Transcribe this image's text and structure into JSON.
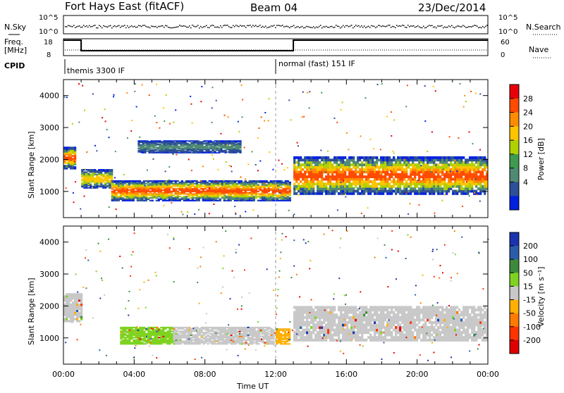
{
  "header": {
    "site": "Fort Hays East (fitACF)",
    "beam": "Beam 04",
    "date": "23/Dec/2014"
  },
  "strip_labels": {
    "nsky": "N.Sky",
    "nsearch": "N.Search",
    "freq_line1": "Freq.",
    "freq_line2": "[MHz]",
    "nave": "Nave",
    "cpid": "CPID",
    "nsky_top": "10^5",
    "nsky_bot": "10^0",
    "freq_top": "18",
    "freq_bot": "8",
    "nave_top": "60",
    "nave_bot": "0",
    "nsearch_top": "10^5",
    "nsearch_bot": "10^0"
  },
  "cpid_segments": [
    {
      "label": "themis 3300 IF",
      "start_hour": 0,
      "end_hour": 12
    },
    {
      "label": "normal (fast) 151 IF",
      "start_hour": 12,
      "end_hour": 24
    }
  ],
  "power_colorbar": {
    "title": "Power [dB]",
    "ticks": [
      "28",
      "24",
      "20",
      "16",
      "12",
      "8",
      "4"
    ],
    "colors": [
      "#e8000b",
      "#ff4a00",
      "#ff8c00",
      "#ffc400",
      "#b0d000",
      "#3e9a4e",
      "#4f8a74",
      "#2d4f96",
      "#0020e0"
    ]
  },
  "velocity_colorbar": {
    "title": "Velocity [m s⁻¹]",
    "ticks": [
      "200",
      "100",
      "50",
      "15",
      "-15",
      "-50",
      "-100",
      "-200"
    ],
    "colors": [
      "#1a33b0",
      "#2a5caa",
      "#3d8a3d",
      "#7ed321",
      "#c8c8c8",
      "#ffb000",
      "#ff7a00",
      "#ff3300",
      "#e00000"
    ]
  },
  "axes": {
    "ylabel": "Slant Range [km]",
    "xlabel": "Time UT",
    "yticks": [
      "4000",
      "3000",
      "2000",
      "1000"
    ],
    "xticks": [
      "00:00",
      "04:00",
      "08:00",
      "12:00",
      "16:00",
      "20:00",
      "00:00"
    ]
  },
  "chart_data": [
    {
      "type": "line",
      "title": "Freq.",
      "ylabel": "[MHz]",
      "ylim": [
        8,
        18
      ],
      "x_hours": [
        0,
        1,
        1,
        13,
        13,
        24
      ],
      "freq_mhz": [
        18,
        18,
        10.5,
        10.5,
        18,
        18
      ]
    },
    {
      "type": "heatmap",
      "title": "Power [dB]",
      "xlabel": "Time UT",
      "ylabel": "Slant Range [km]",
      "xlim_hours": [
        0,
        24
      ],
      "ylim_km": [
        180,
        4500
      ],
      "colorbar_range_db": [
        0,
        30
      ],
      "bands": [
        {
          "t0": 0.0,
          "t1": 0.6,
          "r0": 1700,
          "r1": 2400,
          "level": "high"
        },
        {
          "t0": 1.0,
          "t1": 2.7,
          "r0": 1100,
          "r1": 1700,
          "level": "mid"
        },
        {
          "t0": 2.7,
          "t1": 12.8,
          "r0": 700,
          "r1": 1350,
          "level": "high"
        },
        {
          "t0": 4.2,
          "t1": 10.0,
          "r0": 2200,
          "r1": 2600,
          "level": "low"
        },
        {
          "t0": 13.0,
          "t1": 24.0,
          "r0": 900,
          "r1": 2100,
          "level": "high"
        }
      ]
    },
    {
      "type": "heatmap",
      "title": "Velocity [m s⁻¹]",
      "xlabel": "Time UT",
      "ylabel": "Slant Range [km]",
      "xlim_hours": [
        0,
        24
      ],
      "ylim_km": [
        180,
        4500
      ],
      "colorbar_range_ms": [
        -200,
        200
      ],
      "bands": [
        {
          "t0": 0.0,
          "t1": 1.0,
          "r0": 1500,
          "r1": 2400,
          "velocity": "-15 to 15"
        },
        {
          "t0": 3.2,
          "t1": 6.2,
          "r0": 800,
          "r1": 1350,
          "velocity": "15 to 50"
        },
        {
          "t0": 6.2,
          "t1": 11.9,
          "r0": 800,
          "r1": 1350,
          "velocity": "-15 to 15"
        },
        {
          "t0": 12.0,
          "t1": 12.8,
          "r0": 800,
          "r1": 1300,
          "velocity": "-50 to -15"
        },
        {
          "t0": 13.0,
          "t1": 24.0,
          "r0": 900,
          "r1": 2000,
          "velocity": "-15 to 15"
        }
      ]
    }
  ]
}
